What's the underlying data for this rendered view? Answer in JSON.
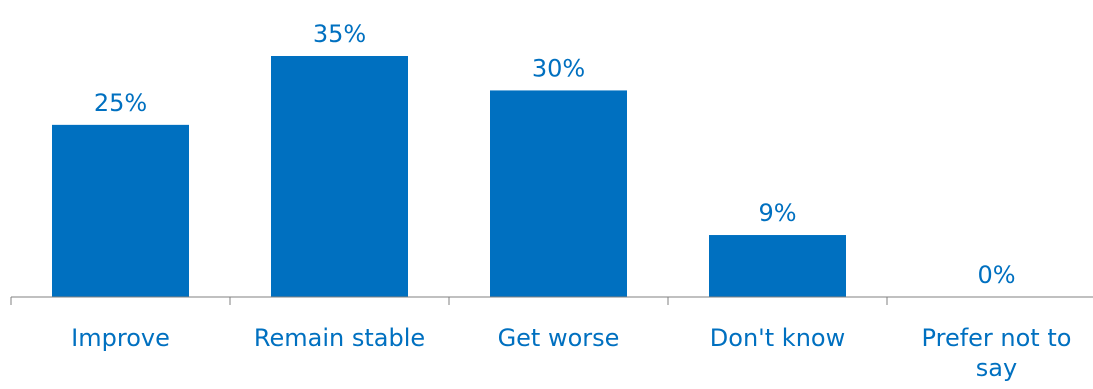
{
  "chart_data": {
    "type": "bar",
    "categories": [
      "Improve",
      "Remain stable",
      "Get worse",
      "Don't know",
      "Prefer not to say"
    ],
    "values": [
      25,
      35,
      30,
      9,
      0
    ],
    "value_labels": [
      "25%",
      "35%",
      "30%",
      "9%",
      "0%"
    ],
    "ylim": [
      0,
      35
    ],
    "grid": false,
    "colors": {
      "bar": "#0070C0",
      "text": "#0070C0",
      "axis": "#808080"
    }
  }
}
